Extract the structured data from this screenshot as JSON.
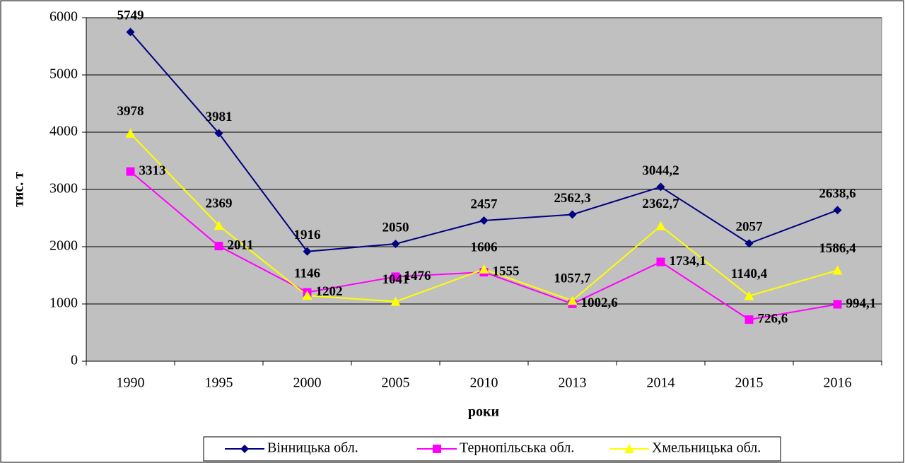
{
  "chart_data": {
    "type": "line",
    "categories": [
      "1990",
      "1995",
      "2000",
      "2005",
      "2010",
      "2013",
      "2014",
      "2015",
      "2016"
    ],
    "series": [
      {
        "name": "Вінницька обл.",
        "color": "#000080",
        "marker": "diamond",
        "values": [
          5749,
          3981,
          1916,
          2050,
          2457,
          2562.3,
          3044.2,
          2057,
          2638.6
        ],
        "value_labels": [
          "5749",
          "3981",
          "1916",
          "2050",
          "2457",
          "2562,3",
          "3044,2",
          "2057",
          "2638,6"
        ]
      },
      {
        "name": "Тернопільська обл.",
        "color": "#ff00ff",
        "marker": "square",
        "values": [
          3313,
          2011,
          1202,
          1476,
          1555,
          1002.6,
          1734.1,
          726.6,
          994.1
        ],
        "value_labels": [
          "3313",
          "2011",
          "1202",
          "1476",
          "1555",
          "1002,6",
          "1734,1",
          "726,6",
          "994,1"
        ]
      },
      {
        "name": "Хмельницька обл.",
        "color": "#ffff00",
        "marker": "triangle",
        "values": [
          3978,
          2369,
          1146,
          1041,
          1606,
          1057.7,
          2362.7,
          1140.4,
          1586.4
        ],
        "value_labels": [
          "3978",
          "2369",
          "1146",
          "1041",
          "1606",
          "1057,7",
          "2362,7",
          "1140,4",
          "1586,4"
        ]
      }
    ],
    "y_label": "тис. т",
    "x_label": "роки",
    "ylim": [
      0,
      6000
    ],
    "yticks": [
      0,
      1000,
      2000,
      3000,
      4000,
      5000,
      6000
    ],
    "grid": true,
    "legend": "bottom"
  }
}
